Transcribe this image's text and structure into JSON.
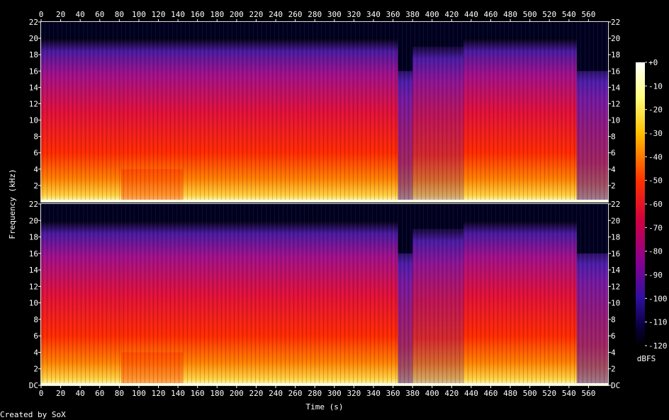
{
  "chart_data": {
    "type": "heatmap",
    "title": "",
    "xlabel": "Time (s)",
    "ylabel": "Frequency (kHz)",
    "xlim": [
      0,
      580
    ],
    "ylim": [
      0,
      22
    ],
    "x_ticks": [
      "0",
      "20",
      "40",
      "60",
      "80",
      "100",
      "120",
      "140",
      "160",
      "180",
      "200",
      "220",
      "240",
      "260",
      "280",
      "300",
      "320",
      "340",
      "360",
      "380",
      "400",
      "420",
      "440",
      "460",
      "480",
      "500",
      "520",
      "540",
      "560"
    ],
    "y_ticks": [
      "2",
      "4",
      "6",
      "8",
      "10",
      "12",
      "14",
      "16",
      "18",
      "20",
      "22"
    ],
    "y_tick_bottom_label": "DC",
    "channels": 2,
    "colorbar": {
      "label": "dBFS",
      "ticks": [
        "+0",
        "-10",
        "-20",
        "-30",
        "-40",
        "-50",
        "-60",
        "-70",
        "-80",
        "-90",
        "-100",
        "-110",
        "-120"
      ],
      "range": [
        -120,
        0
      ]
    },
    "segments": [
      {
        "t_start": 0,
        "t_end": 82,
        "cutoff_khz": 20,
        "level": "loud"
      },
      {
        "t_start": 82,
        "t_end": 145,
        "cutoff_khz": 20,
        "level": "very-loud"
      },
      {
        "t_start": 145,
        "t_end": 365,
        "cutoff_khz": 20,
        "level": "loud"
      },
      {
        "t_start": 365,
        "t_end": 380,
        "cutoff_khz": 16,
        "level": "quiet"
      },
      {
        "t_start": 380,
        "t_end": 432,
        "cutoff_khz": 19,
        "level": "medium"
      },
      {
        "t_start": 432,
        "t_end": 548,
        "cutoff_khz": 20,
        "level": "loud"
      },
      {
        "t_start": 548,
        "t_end": 580,
        "cutoff_khz": 16,
        "level": "quiet"
      }
    ],
    "colors": {
      "background": "#000000",
      "high": "#ffffe0",
      "hot": "#ffd000",
      "mid": "#ff2000",
      "low": "#b00070",
      "quiet": "#5020b0",
      "floor": "#000020"
    }
  },
  "footer": {
    "credit": "Created by SoX"
  }
}
